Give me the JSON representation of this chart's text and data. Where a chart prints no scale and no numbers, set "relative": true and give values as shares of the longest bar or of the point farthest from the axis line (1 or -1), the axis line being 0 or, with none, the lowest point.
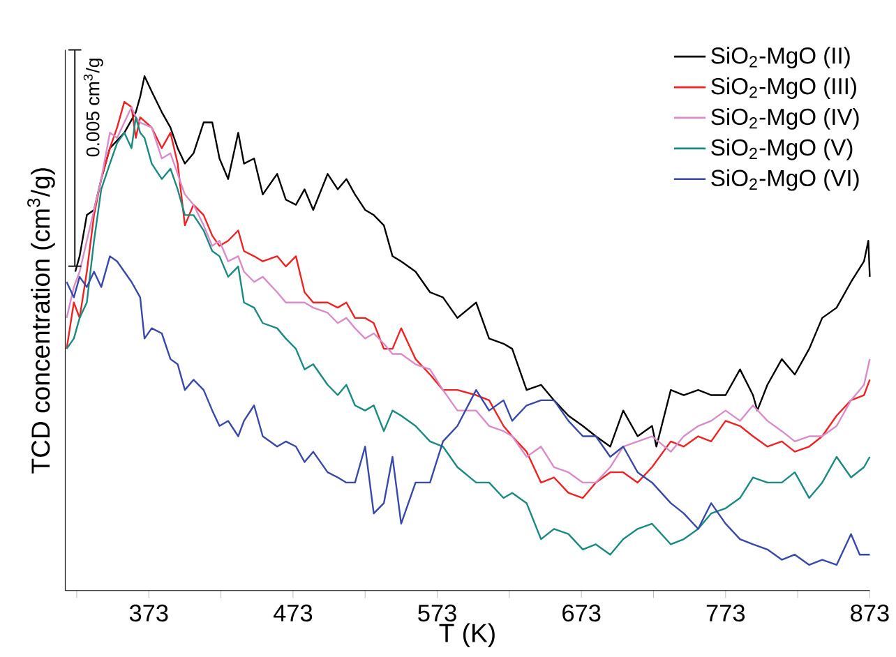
{
  "chart_data": {
    "type": "line",
    "xlabel": "T (K)",
    "ylabel": "TCD concentration (cm$^{3}$/g)",
    "annotations": [
      "0.005 cm$^{3}$/g"
    ],
    "relative": true,
    "xlim": [
      315,
      873
    ],
    "xticks": [
      {
        "value": 323,
        "label": null
      },
      373,
      {
        "value": 423,
        "label": null
      },
      473,
      {
        "value": 523,
        "label": null
      },
      573,
      {
        "value": 623,
        "label": null
      },
      673,
      {
        "value": 723,
        "label": null
      },
      773,
      {
        "value": 823,
        "label": null
      },
      873
    ],
    "legend": "top right",
    "series": [
      {
        "name": "SiO$_{2}$-MgO (II)",
        "color": "#000000",
        "x": [
          322,
          325,
          330,
          335,
          340,
          346,
          356,
          364,
          367,
          370,
          375,
          382,
          388,
          393,
          398,
          404,
          411,
          417,
          422,
          428,
          435,
          439,
          446,
          452,
          462,
          468,
          475,
          481,
          487,
          497,
          504,
          510,
          516,
          523,
          529,
          536,
          542,
          548,
          558,
          568,
          577,
          587,
          600,
          609,
          619,
          625,
          635,
          645,
          654,
          664,
          674,
          683,
          693,
          702,
          712,
          722,
          725,
          735,
          744,
          754,
          763,
          773,
          783,
          792,
          795,
          802,
          812,
          821,
          831,
          840,
          850,
          860,
          869,
          872,
          873
        ],
        "values": [
          0.62,
          0.65,
          0.73,
          0.74,
          0.8,
          0.86,
          0.89,
          0.93,
          0.96,
          1.0,
          0.97,
          0.93,
          0.9,
          0.86,
          0.83,
          0.85,
          0.91,
          0.91,
          0.84,
          0.8,
          0.89,
          0.83,
          0.84,
          0.77,
          0.81,
          0.76,
          0.75,
          0.78,
          0.74,
          0.81,
          0.78,
          0.8,
          0.77,
          0.74,
          0.73,
          0.71,
          0.65,
          0.64,
          0.62,
          0.58,
          0.57,
          0.53,
          0.56,
          0.49,
          0.48,
          0.47,
          0.39,
          0.4,
          0.37,
          0.34,
          0.32,
          0.3,
          0.28,
          0.35,
          0.3,
          0.32,
          0.28,
          0.39,
          0.38,
          0.39,
          0.38,
          0.38,
          0.43,
          0.38,
          0.35,
          0.4,
          0.45,
          0.42,
          0.47,
          0.53,
          0.55,
          0.6,
          0.64,
          0.68,
          0.61
        ]
      },
      {
        "name": "SiO$_{2}$-MgO (III)",
        "color": "#ee2222",
        "x": [
          316,
          321,
          325,
          330,
          335,
          340,
          346,
          351,
          356,
          361,
          364,
          367,
          375,
          382,
          388,
          393,
          398,
          404,
          411,
          417,
          422,
          428,
          435,
          439,
          446,
          452,
          462,
          468,
          475,
          481,
          487,
          497,
          504,
          510,
          516,
          523,
          529,
          536,
          542,
          548,
          558,
          568,
          577,
          587,
          600,
          609,
          619,
          625,
          635,
          645,
          654,
          664,
          674,
          683,
          693,
          702,
          712,
          722,
          735,
          744,
          754,
          763,
          773,
          783,
          792,
          802,
          812,
          821,
          831,
          840,
          850,
          860,
          869,
          873
        ],
        "values": [
          0.47,
          0.56,
          0.53,
          0.62,
          0.73,
          0.8,
          0.86,
          0.9,
          0.95,
          0.94,
          0.88,
          0.92,
          0.9,
          0.86,
          0.89,
          0.83,
          0.71,
          0.75,
          0.73,
          0.69,
          0.67,
          0.68,
          0.7,
          0.66,
          0.65,
          0.64,
          0.65,
          0.63,
          0.65,
          0.58,
          0.56,
          0.56,
          0.55,
          0.56,
          0.53,
          0.53,
          0.52,
          0.47,
          0.47,
          0.51,
          0.45,
          0.42,
          0.39,
          0.39,
          0.38,
          0.37,
          0.32,
          0.3,
          0.27,
          0.21,
          0.22,
          0.19,
          0.18,
          0.21,
          0.23,
          0.23,
          0.21,
          0.24,
          0.29,
          0.28,
          0.3,
          0.29,
          0.33,
          0.32,
          0.3,
          0.28,
          0.29,
          0.27,
          0.28,
          0.3,
          0.34,
          0.37,
          0.38,
          0.41
        ]
      },
      {
        "name": "SiO$_{2}$-MgO (IV)",
        "color": "#d98cc8",
        "x": [
          316,
          321,
          325,
          330,
          335,
          340,
          346,
          351,
          356,
          361,
          364,
          367,
          375,
          382,
          388,
          393,
          398,
          404,
          411,
          417,
          422,
          428,
          435,
          439,
          446,
          452,
          462,
          468,
          475,
          481,
          487,
          497,
          504,
          510,
          516,
          523,
          529,
          536,
          542,
          548,
          558,
          568,
          577,
          587,
          600,
          609,
          619,
          625,
          635,
          645,
          654,
          664,
          674,
          683,
          693,
          702,
          712,
          722,
          735,
          744,
          754,
          763,
          773,
          783,
          792,
          802,
          812,
          821,
          831,
          840,
          850,
          860,
          869,
          873
        ],
        "values": [
          0.53,
          0.59,
          0.62,
          0.68,
          0.74,
          0.8,
          0.89,
          0.88,
          0.91,
          0.94,
          0.92,
          0.91,
          0.9,
          0.84,
          0.85,
          0.81,
          0.77,
          0.75,
          0.71,
          0.67,
          0.68,
          0.64,
          0.65,
          0.62,
          0.6,
          0.61,
          0.58,
          0.56,
          0.56,
          0.56,
          0.55,
          0.54,
          0.52,
          0.53,
          0.51,
          0.49,
          0.5,
          0.48,
          0.46,
          0.46,
          0.44,
          0.43,
          0.39,
          0.35,
          0.35,
          0.32,
          0.31,
          0.3,
          0.26,
          0.28,
          0.24,
          0.23,
          0.21,
          0.21,
          0.24,
          0.28,
          0.29,
          0.3,
          0.27,
          0.3,
          0.32,
          0.33,
          0.35,
          0.33,
          0.36,
          0.33,
          0.31,
          0.29,
          0.3,
          0.3,
          0.32,
          0.37,
          0.4,
          0.45
        ]
      },
      {
        "name": "SiO$_{2}$-MgO (V)",
        "color": "#1a8a80",
        "x": [
          316,
          321,
          325,
          330,
          335,
          340,
          346,
          351,
          356,
          361,
          364,
          367,
          370,
          375,
          382,
          388,
          393,
          398,
          404,
          411,
          417,
          422,
          428,
          435,
          439,
          446,
          452,
          462,
          468,
          475,
          481,
          487,
          497,
          504,
          510,
          516,
          523,
          529,
          536,
          542,
          548,
          558,
          568,
          577,
          587,
          600,
          609,
          619,
          625,
          635,
          645,
          654,
          664,
          674,
          683,
          693,
          702,
          712,
          722,
          735,
          744,
          754,
          763,
          773,
          783,
          792,
          802,
          812,
          821,
          831,
          840,
          850,
          860,
          869,
          873
        ],
        "values": [
          0.47,
          0.49,
          0.53,
          0.56,
          0.68,
          0.78,
          0.83,
          0.87,
          0.89,
          0.86,
          0.92,
          0.89,
          0.88,
          0.83,
          0.8,
          0.82,
          0.78,
          0.73,
          0.73,
          0.7,
          0.66,
          0.65,
          0.61,
          0.63,
          0.56,
          0.55,
          0.52,
          0.51,
          0.49,
          0.47,
          0.43,
          0.44,
          0.4,
          0.38,
          0.4,
          0.36,
          0.35,
          0.36,
          0.31,
          0.35,
          0.34,
          0.32,
          0.29,
          0.28,
          0.24,
          0.21,
          0.21,
          0.18,
          0.19,
          0.17,
          0.1,
          0.12,
          0.11,
          0.08,
          0.09,
          0.07,
          0.1,
          0.12,
          0.13,
          0.09,
          0.1,
          0.12,
          0.15,
          0.16,
          0.18,
          0.22,
          0.21,
          0.21,
          0.23,
          0.18,
          0.21,
          0.26,
          0.22,
          0.24,
          0.26
        ]
      },
      {
        "name": "SiO$_{2}$-MgO (VI)",
        "color": "#3848a8",
        "x": [
          316,
          321,
          325,
          330,
          335,
          340,
          346,
          351,
          356,
          361,
          367,
          370,
          375,
          382,
          388,
          393,
          398,
          404,
          411,
          417,
          422,
          428,
          435,
          439,
          446,
          452,
          462,
          468,
          475,
          481,
          487,
          497,
          504,
          510,
          516,
          523,
          529,
          536,
          542,
          548,
          558,
          568,
          577,
          587,
          600,
          609,
          619,
          625,
          635,
          645,
          654,
          664,
          674,
          683,
          693,
          702,
          712,
          722,
          735,
          744,
          754,
          763,
          773,
          783,
          792,
          802,
          812,
          821,
          831,
          840,
          850,
          860,
          866,
          873
        ],
        "values": [
          0.6,
          0.57,
          0.61,
          0.59,
          0.62,
          0.59,
          0.65,
          0.64,
          0.62,
          0.6,
          0.57,
          0.49,
          0.51,
          0.5,
          0.45,
          0.44,
          0.39,
          0.41,
          0.39,
          0.35,
          0.32,
          0.33,
          0.3,
          0.33,
          0.36,
          0.3,
          0.28,
          0.29,
          0.28,
          0.25,
          0.27,
          0.23,
          0.22,
          0.21,
          0.21,
          0.28,
          0.15,
          0.17,
          0.26,
          0.13,
          0.21,
          0.21,
          0.29,
          0.32,
          0.39,
          0.35,
          0.37,
          0.33,
          0.36,
          0.37,
          0.37,
          0.33,
          0.3,
          0.3,
          0.26,
          0.28,
          0.23,
          0.21,
          0.17,
          0.15,
          0.12,
          0.17,
          0.13,
          0.1,
          0.09,
          0.08,
          0.06,
          0.07,
          0.05,
          0.06,
          0.05,
          0.11,
          0.07,
          0.07
        ]
      }
    ]
  }
}
